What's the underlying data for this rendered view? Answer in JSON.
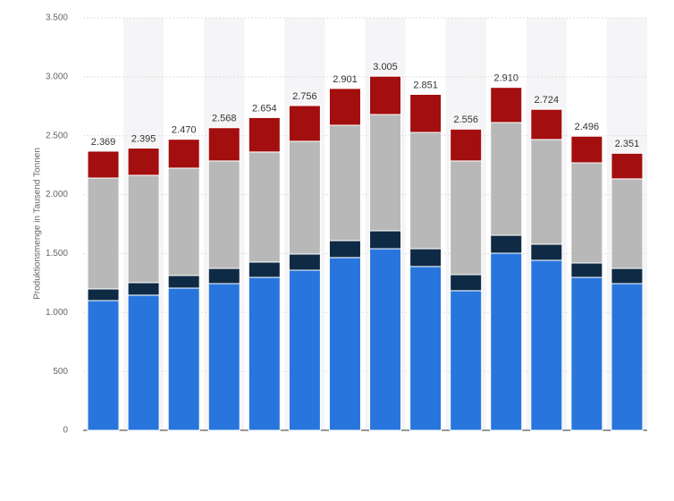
{
  "chart_data": {
    "type": "stacked_bar",
    "y_label": "Produktionsmenge in Tausend Tonnen",
    "categories": [
      null,
      null,
      null,
      null,
      null,
      null,
      null,
      null,
      null,
      null,
      null,
      null,
      null,
      null
    ],
    "series": [
      {
        "color": "#2876dd",
        "values": [
          1101,
          1147,
          1207,
          1245,
          1298,
          1359,
          1466,
          1541,
          1390,
          1185,
          1503,
          1443,
          1298,
          1245
        ]
      },
      {
        "color": "#0f2a44",
        "values": [
          99,
          106,
          107,
          129,
          130,
          137,
          144,
          152,
          151,
          136,
          152,
          136,
          122,
          129
        ]
      },
      {
        "color": "#b8b8b8",
        "values": [
          941,
          911,
          911,
          912,
          934,
          957,
          979,
          987,
          987,
          965,
          957,
          889,
          850,
          760
        ]
      },
      {
        "color": "#a30e0e",
        "values": [
          228,
          231,
          245,
          282,
          292,
          303,
          312,
          325,
          323,
          270,
          298,
          256,
          226,
          217
        ]
      }
    ],
    "totals": {
      "values": [
        2369,
        2395,
        2470,
        2568,
        2654,
        2756,
        2901,
        3005,
        2851,
        2556,
        2910,
        2724,
        2496,
        2351
      ],
      "labels": [
        "2.369",
        "2.395",
        "2.470",
        "2.568",
        "2.654",
        "2.756",
        "2.901",
        "3.005",
        "2.851",
        "2.556",
        "2.910",
        "2.724",
        "2.496",
        "2.351"
      ]
    },
    "ylim": [
      0,
      3500
    ],
    "yticks": [
      0,
      500,
      {
        "value": 1000,
        "label": "1.000"
      },
      {
        "value": 1500,
        "label": "1.500"
      },
      {
        "value": 2000,
        "label": "2.000"
      },
      {
        "value": 2500,
        "label": "2.500"
      },
      {
        "value": 3000,
        "label": "3.000"
      },
      {
        "value": 3500,
        "label": "3.500"
      }
    ],
    "grid": true
  }
}
